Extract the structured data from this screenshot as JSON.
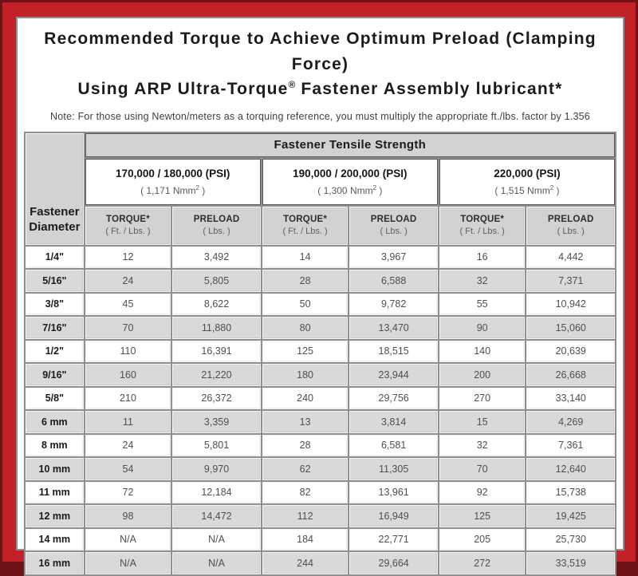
{
  "title": {
    "line1": "Recommended Torque to Achieve Optimum Preload (Clamping Force)",
    "line2_pre": "Using ARP Ultra-Torque",
    "line2_sup": "®",
    "line2_post": " Fastener Assembly lubricant*"
  },
  "note": "Note: For those using Newton/meters as a torquing reference, you must multiply the appropriate ft./lbs. factor by 1.356",
  "colors": {
    "frame_red": "#c22127",
    "frame_dark_edge": "#6e1215",
    "header_gray": "#d2d2d2",
    "row_alt_gray": "#d9d9d9",
    "grid_gray": "#8f8f8f"
  },
  "table": {
    "corner_header_line1": "Fastener",
    "corner_header_line2": "Diameter",
    "tensile_header": "Fastener Tensile Strength",
    "groups": [
      {
        "psi": "170,000 / 180,000 (PSI)",
        "nmm_pre": "( 1,171 Nmm",
        "nmm_sup": "2",
        "nmm_post": " )"
      },
      {
        "psi": "190,000 / 200,000 (PSI)",
        "nmm_pre": "( 1,300 Nmm",
        "nmm_sup": "2",
        "nmm_post": " )"
      },
      {
        "psi": "220,000 (PSI)",
        "nmm_pre": "( 1,515 Nmm",
        "nmm_sup": "2",
        "nmm_post": " )"
      }
    ],
    "col_headers": {
      "torque": "TORQUE*",
      "torque_sub": "( Ft. / Lbs. )",
      "preload": "PRELOAD",
      "preload_sub": "( Lbs. )"
    },
    "rows": [
      {
        "d": "1/4\"",
        "v": [
          "12",
          "3,492",
          "14",
          "3,967",
          "16",
          "4,442"
        ]
      },
      {
        "d": "5/16\"",
        "v": [
          "24",
          "5,805",
          "28",
          "6,588",
          "32",
          "7,371"
        ]
      },
      {
        "d": "3/8\"",
        "v": [
          "45",
          "8,622",
          "50",
          "9,782",
          "55",
          "10,942"
        ]
      },
      {
        "d": "7/16\"",
        "v": [
          "70",
          "11,880",
          "80",
          "13,470",
          "90",
          "15,060"
        ]
      },
      {
        "d": "1/2\"",
        "v": [
          "110",
          "16,391",
          "125",
          "18,515",
          "140",
          "20,639"
        ]
      },
      {
        "d": "9/16\"",
        "v": [
          "160",
          "21,220",
          "180",
          "23,944",
          "200",
          "26,668"
        ]
      },
      {
        "d": "5/8\"",
        "v": [
          "210",
          "26,372",
          "240",
          "29,756",
          "270",
          "33,140"
        ]
      },
      {
        "d": "6 mm",
        "v": [
          "11",
          "3,359",
          "13",
          "3,814",
          "15",
          "4,269"
        ]
      },
      {
        "d": "8 mm",
        "v": [
          "24",
          "5,801",
          "28",
          "6,581",
          "32",
          "7,361"
        ]
      },
      {
        "d": "10 mm",
        "v": [
          "54",
          "9,970",
          "62",
          "11,305",
          "70",
          "12,640"
        ]
      },
      {
        "d": "11 mm",
        "v": [
          "72",
          "12,184",
          "82",
          "13,961",
          "92",
          "15,738"
        ]
      },
      {
        "d": "12 mm",
        "v": [
          "98",
          "14,472",
          "112",
          "16,949",
          "125",
          "19,425"
        ]
      },
      {
        "d": "14 mm",
        "v": [
          "N/A",
          "N/A",
          "184",
          "22,771",
          "205",
          "25,730"
        ]
      },
      {
        "d": "16 mm",
        "v": [
          "N/A",
          "N/A",
          "244",
          "29,664",
          "272",
          "33,519"
        ]
      }
    ]
  }
}
